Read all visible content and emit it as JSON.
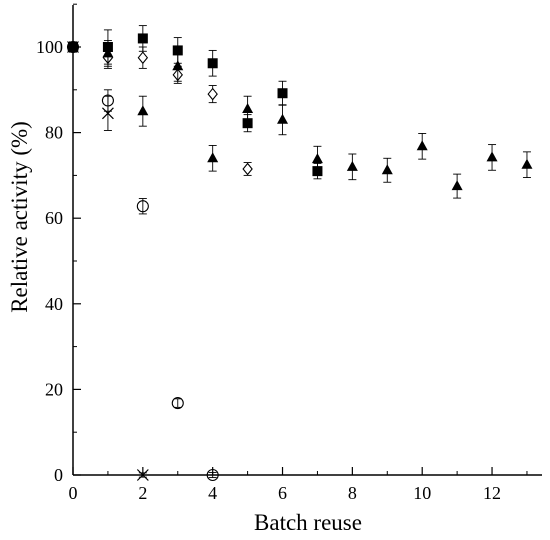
{
  "chart_data": {
    "type": "scatter",
    "xlabel": "Batch reuse",
    "ylabel": "Relative activity (%)",
    "xlim": [
      0,
      13.4
    ],
    "ylim": [
      0,
      110
    ],
    "xticks": [
      "0",
      "2",
      "4",
      "6",
      "8",
      "10",
      "12"
    ],
    "yticks": [
      "0",
      "20",
      "40",
      "60",
      "80",
      "100"
    ],
    "xtick_values": [
      0,
      2,
      4,
      6,
      8,
      10,
      12
    ],
    "ytick_values": [
      0,
      20,
      40,
      60,
      80,
      100
    ],
    "grid": false,
    "legend": "none",
    "series": [
      {
        "marker": "circle-open",
        "points": [
          {
            "x": 0,
            "y": 100,
            "err": 0.8
          },
          {
            "x": 1,
            "y": 87.5,
            "err": 2.5
          },
          {
            "x": 2,
            "y": 62.8,
            "err": 1.8
          },
          {
            "x": 3,
            "y": 16.8,
            "err": 1.0
          },
          {
            "x": 4,
            "y": 0,
            "err": 0.6
          }
        ]
      },
      {
        "marker": "cross",
        "points": [
          {
            "x": 0,
            "y": 100,
            "err": 1.2
          },
          {
            "x": 1,
            "y": 84.5,
            "err": 4.0
          },
          {
            "x": 2,
            "y": 0,
            "err": 0.5
          }
        ]
      },
      {
        "marker": "diamond-open",
        "points": [
          {
            "x": 0,
            "y": 100,
            "err": 1.0
          },
          {
            "x": 1,
            "y": 97.5,
            "err": 2.5
          },
          {
            "x": 2,
            "y": 97.5,
            "err": 2.5
          },
          {
            "x": 3,
            "y": 93.5,
            "err": 2.0
          },
          {
            "x": 4,
            "y": 89.0,
            "err": 2.0
          },
          {
            "x": 5,
            "y": 71.5,
            "err": 1.5
          }
        ]
      },
      {
        "marker": "square-filled",
        "points": [
          {
            "x": 0,
            "y": 100,
            "err": 0.8
          },
          {
            "x": 1,
            "y": 100,
            "err": 4.0
          },
          {
            "x": 2,
            "y": 102,
            "err": 3.0
          },
          {
            "x": 3,
            "y": 99.2,
            "err": 3.0
          },
          {
            "x": 4,
            "y": 96.2,
            "err": 3.0
          },
          {
            "x": 5,
            "y": 82.2,
            "err": 2.0
          },
          {
            "x": 6,
            "y": 89.2,
            "err": 2.8
          },
          {
            "x": 7,
            "y": 71.0,
            "err": 1.8
          }
        ]
      },
      {
        "marker": "triangle-filled",
        "points": [
          {
            "x": 0,
            "y": 100,
            "err": 0.8
          },
          {
            "x": 1,
            "y": 98.5,
            "err": 3.0
          },
          {
            "x": 2,
            "y": 85.0,
            "err": 3.5
          },
          {
            "x": 3,
            "y": 95.5,
            "err": 3.5
          },
          {
            "x": 4,
            "y": 74.0,
            "err": 3.0
          },
          {
            "x": 5,
            "y": 85.5,
            "err": 3.0
          },
          {
            "x": 6,
            "y": 83.0,
            "err": 3.5
          },
          {
            "x": 7,
            "y": 73.8,
            "err": 3.0
          },
          {
            "x": 8,
            "y": 72.0,
            "err": 3.0
          },
          {
            "x": 9,
            "y": 71.2,
            "err": 2.8
          },
          {
            "x": 10,
            "y": 76.8,
            "err": 3.0
          },
          {
            "x": 11,
            "y": 67.5,
            "err": 2.8
          },
          {
            "x": 12,
            "y": 74.2,
            "err": 3.0
          },
          {
            "x": 13,
            "y": 72.5,
            "err": 3.0
          }
        ]
      }
    ]
  }
}
